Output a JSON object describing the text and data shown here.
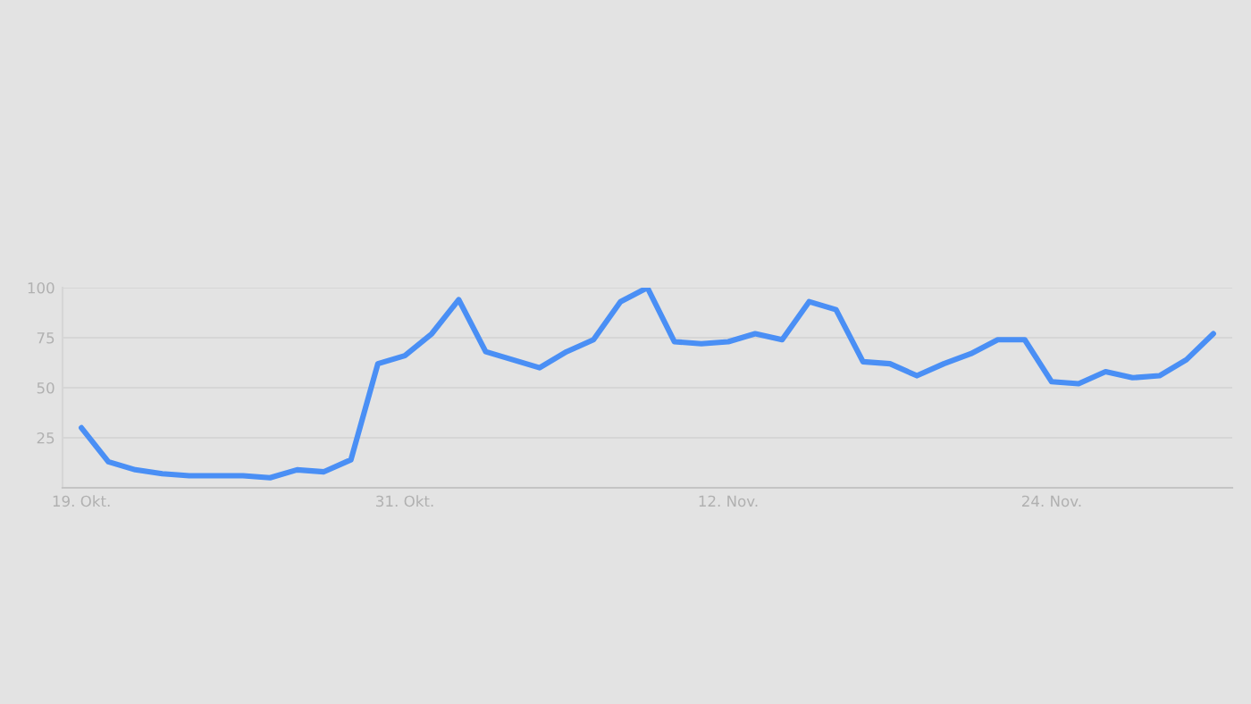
{
  "chart_data": {
    "type": "line",
    "categories": [
      "19. Okt.",
      null,
      null,
      null,
      null,
      null,
      null,
      null,
      null,
      null,
      null,
      null,
      "31. Okt.",
      null,
      null,
      null,
      null,
      null,
      null,
      null,
      null,
      null,
      null,
      null,
      "12. Nov.",
      null,
      null,
      null,
      null,
      null,
      null,
      null,
      null,
      null,
      null,
      null,
      "24. Nov.",
      null,
      null,
      null,
      null,
      null,
      null
    ],
    "series": [
      {
        "color": "#4a8ff5",
        "values": [
          30,
          13,
          9,
          7,
          6,
          6,
          6,
          5,
          9,
          8,
          14,
          62,
          66,
          77,
          94,
          68,
          64,
          60,
          68,
          74,
          93,
          100,
          73,
          72,
          73,
          77,
          74,
          93,
          89,
          63,
          62,
          56,
          62,
          67,
          74,
          74,
          53,
          52,
          58,
          55,
          56,
          64,
          77
        ]
      }
    ],
    "ylim": [
      0,
      100
    ],
    "yticks": [
      25,
      50,
      75,
      100
    ],
    "grid": "y",
    "legend": false,
    "marker": "none",
    "line_style": "solid"
  }
}
